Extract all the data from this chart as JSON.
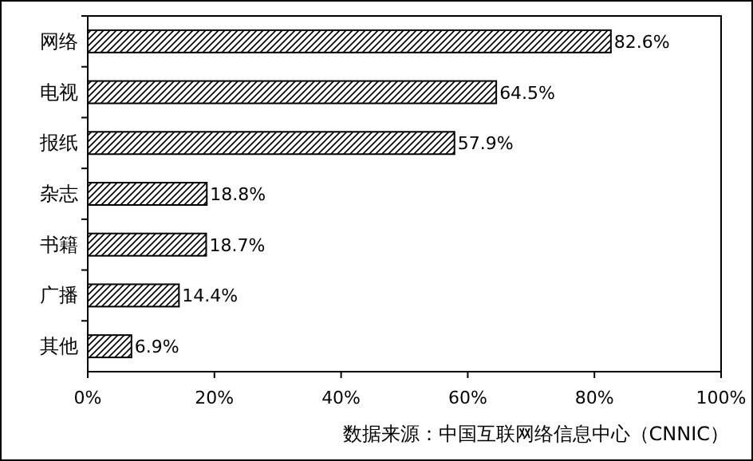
{
  "chart_data": {
    "type": "bar",
    "orientation": "horizontal",
    "categories": [
      "网络",
      "电视",
      "报纸",
      "杂志",
      "书籍",
      "广播",
      "其他"
    ],
    "values": [
      82.6,
      64.5,
      57.9,
      18.8,
      18.7,
      14.4,
      6.9
    ],
    "value_labels": [
      "82.6%",
      "64.5%",
      "57.9%",
      "18.8%",
      "18.7%",
      "14.4%",
      "6.9%"
    ],
    "color": "#000000",
    "xlim": [
      0,
      100
    ],
    "xticks": [
      {
        "value": 0,
        "label": "0%"
      },
      {
        "value": 20,
        "label": "20%"
      },
      {
        "value": 40,
        "label": "40%"
      },
      {
        "value": 60,
        "label": "60%"
      },
      {
        "value": 80,
        "label": "80%"
      },
      {
        "value": 100,
        "label": "100%"
      }
    ],
    "annotations": [
      "数据来源：中国互联网络信息中心（CNNIC）"
    ]
  }
}
